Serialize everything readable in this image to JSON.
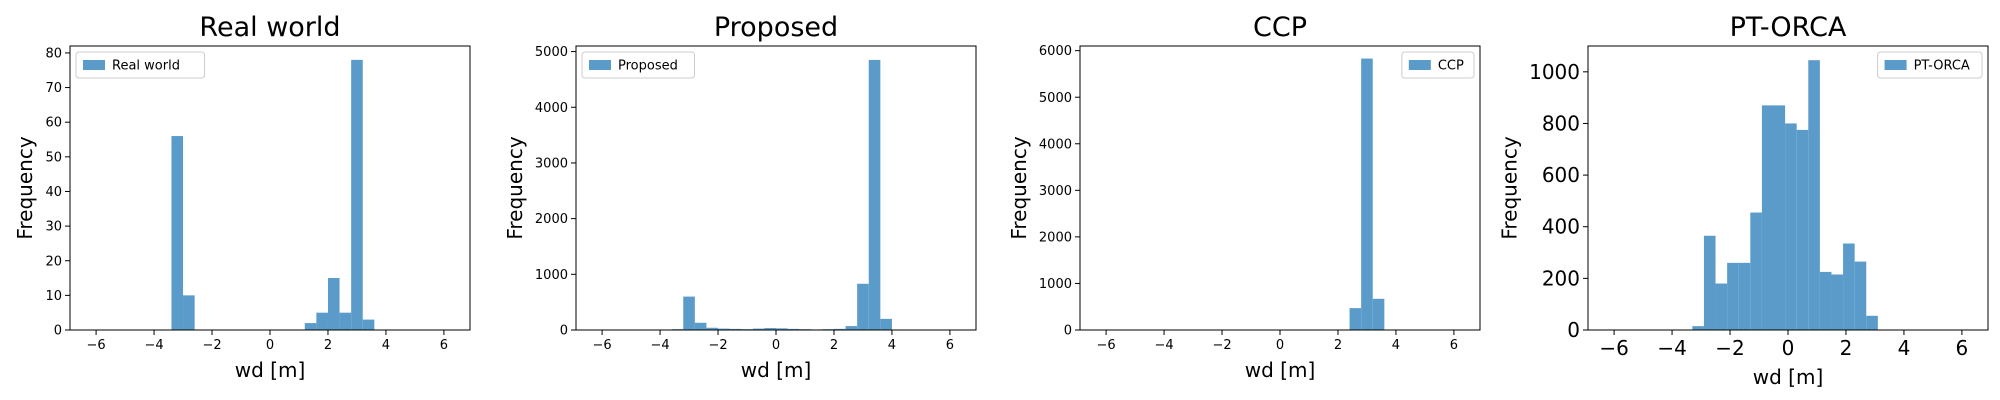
{
  "bar_color": "#5a9bc9",
  "chart_data": [
    {
      "type": "bar",
      "title": "Real world",
      "xlabel": "wd [m]",
      "ylabel": "Frequency",
      "legend": "Real world",
      "legend_position": "upper-left",
      "xlim": [
        -6.9,
        6.9
      ],
      "ylim": [
        0,
        82
      ],
      "xticks": [
        -6,
        -4,
        -2,
        0,
        2,
        4,
        6
      ],
      "yticks": [
        0,
        10,
        20,
        30,
        40,
        50,
        60,
        70,
        80
      ],
      "bin_edges": [
        -3.4,
        -3.0,
        -2.6,
        1.2,
        1.6,
        2.0,
        2.4,
        2.8,
        3.2,
        3.6
      ],
      "values": [
        56,
        10,
        0,
        2,
        5,
        15,
        5,
        78,
        3
      ]
    },
    {
      "type": "bar",
      "title": "Proposed",
      "xlabel": "wd [m]",
      "ylabel": "Frequency",
      "legend": "Proposed",
      "legend_position": "upper-left",
      "xlim": [
        -6.9,
        6.9
      ],
      "ylim": [
        0,
        5100
      ],
      "xticks": [
        -6,
        -4,
        -2,
        0,
        2,
        4,
        6
      ],
      "yticks": [
        0,
        1000,
        2000,
        3000,
        4000,
        5000
      ],
      "bin_edges": [
        -3.6,
        -3.2,
        -2.8,
        -2.4,
        -2.0,
        -1.6,
        -1.2,
        -0.8,
        -0.4,
        0.0,
        0.4,
        0.8,
        1.2,
        1.6,
        2.0,
        2.4,
        2.8,
        3.2,
        3.6,
        4.0
      ],
      "values": [
        15,
        600,
        130,
        40,
        25,
        20,
        15,
        25,
        35,
        30,
        20,
        15,
        10,
        15,
        20,
        70,
        830,
        4850,
        200
      ]
    },
    {
      "type": "bar",
      "title": "CCP",
      "xlabel": "wd [m]",
      "ylabel": "Frequency",
      "legend": "CCP",
      "legend_position": "upper-right",
      "xlim": [
        -6.9,
        6.9
      ],
      "ylim": [
        0,
        6100
      ],
      "xticks": [
        -6,
        -4,
        -2,
        0,
        2,
        4,
        6
      ],
      "yticks": [
        0,
        1000,
        2000,
        3000,
        4000,
        5000,
        6000
      ],
      "bin_edges": [
        2.4,
        2.8,
        3.2,
        3.6
      ],
      "values": [
        470,
        5830,
        670
      ]
    },
    {
      "type": "bar",
      "title": "PT-ORCA",
      "xlabel": "wd [m]",
      "ylabel": "Frequency",
      "legend": "PT-ORCA",
      "legend_position": "upper-right",
      "xlim": [
        -6.9,
        6.9
      ],
      "ylim": [
        0,
        1100
      ],
      "xticks": [
        -6,
        -4,
        -2,
        0,
        2,
        4,
        6
      ],
      "yticks": [
        0,
        200,
        400,
        600,
        800,
        1000
      ],
      "bin_edges": [
        -3.3,
        -2.9,
        -2.5,
        -2.1,
        -1.7,
        -1.3,
        -0.9,
        -0.5,
        -0.1,
        0.3,
        0.7,
        1.1,
        1.5,
        1.9,
        2.3,
        2.7,
        3.1,
        3.5
      ],
      "values": [
        15,
        365,
        180,
        260,
        260,
        455,
        870,
        870,
        800,
        775,
        1045,
        225,
        215,
        335,
        265,
        55,
        0
      ]
    }
  ]
}
